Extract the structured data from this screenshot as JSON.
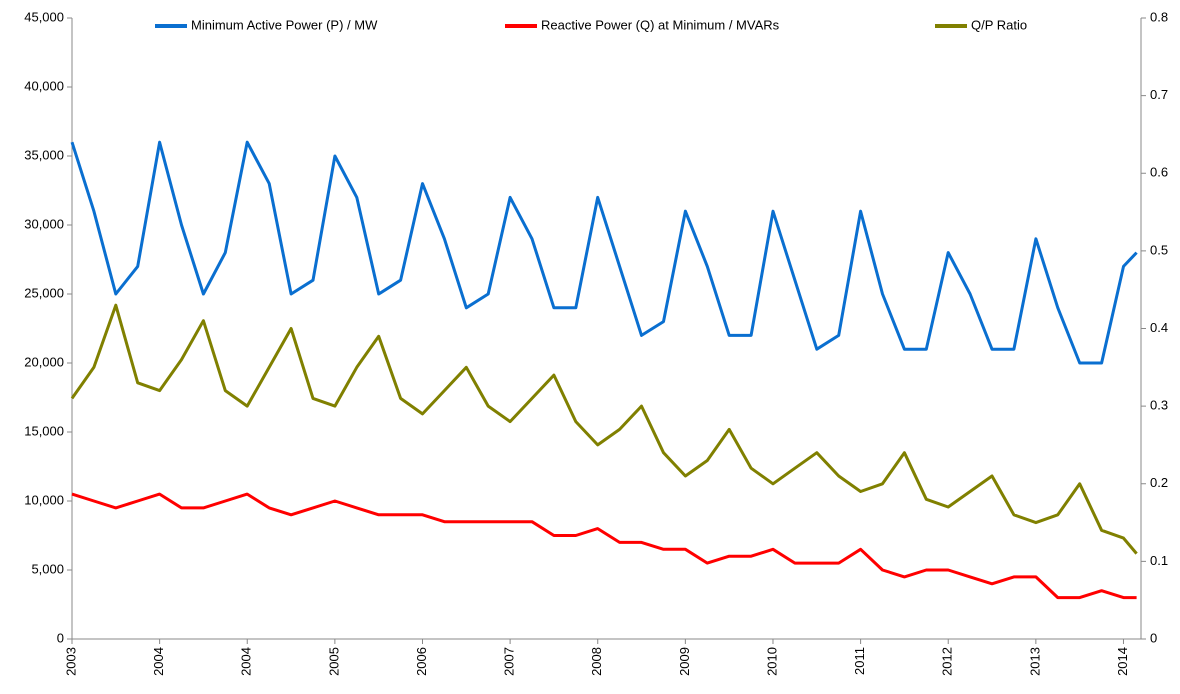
{
  "chart_data": {
    "type": "line",
    "xticks": [
      {
        "value": 0,
        "label": "2003"
      },
      {
        "value": 1,
        "label": "2004"
      },
      {
        "value": 2,
        "label": "2004"
      },
      {
        "value": 3,
        "label": "2005"
      },
      {
        "value": 4,
        "label": "2006"
      },
      {
        "value": 5,
        "label": "2007"
      },
      {
        "value": 6,
        "label": "2008"
      },
      {
        "value": 7,
        "label": "2009"
      },
      {
        "value": 8,
        "label": "2010"
      },
      {
        "value": 9,
        "label": "2011"
      },
      {
        "value": 10,
        "label": "2012"
      },
      {
        "value": 11,
        "label": "2013"
      },
      {
        "value": 12,
        "label": "2014"
      }
    ],
    "xlim": [
      0,
      12.2
    ],
    "ylim": [
      0,
      45000
    ],
    "yticks": [
      0,
      {
        "value": 5000,
        "label": "5,000"
      },
      {
        "value": 10000,
        "label": "10,000"
      },
      {
        "value": 15000,
        "label": "15,000"
      },
      {
        "value": 20000,
        "label": "20,000"
      },
      {
        "value": 25000,
        "label": "25,000"
      },
      {
        "value": 30000,
        "label": "30,000"
      },
      {
        "value": 35000,
        "label": "35,000"
      },
      {
        "value": 40000,
        "label": "40,000"
      },
      {
        "value": 45000,
        "label": "45,000"
      }
    ],
    "y2lim": [
      0,
      0.8
    ],
    "y2ticks": [
      0,
      0.1,
      0.2,
      0.3,
      0.4,
      0.5,
      0.6,
      0.7,
      0.8
    ],
    "legend": "top",
    "x": [
      0,
      0.25,
      0.5,
      0.75,
      1,
      1.25,
      1.5,
      1.75,
      2,
      2.25,
      2.5,
      2.75,
      3,
      3.25,
      3.5,
      3.75,
      4,
      4.25,
      4.5,
      4.75,
      5,
      5.25,
      5.5,
      5.75,
      6,
      6.25,
      6.5,
      6.75,
      7,
      7.25,
      7.5,
      7.75,
      8,
      8.25,
      8.5,
      8.75,
      9,
      9.25,
      9.5,
      9.75,
      10,
      10.25,
      10.5,
      10.75,
      11,
      11.25,
      11.5,
      11.75,
      12,
      12.15
    ],
    "series": [
      {
        "name": "Minimum Active Power (P) / MW",
        "color": "#0a6fd0",
        "values": [
          36000,
          31000,
          25000,
          27000,
          36000,
          30000,
          25000,
          28000,
          36000,
          33000,
          25000,
          26000,
          35000,
          32000,
          25000,
          26000,
          33000,
          29000,
          24000,
          25000,
          32000,
          29000,
          24000,
          24000,
          32000,
          27000,
          22000,
          23000,
          31000,
          27000,
          22000,
          22000,
          31000,
          26000,
          21000,
          22000,
          31000,
          25000,
          21000,
          21000,
          28000,
          25000,
          21000,
          21000,
          29000,
          24000,
          20000,
          20000,
          27000,
          28000
        ]
      },
      {
        "name": "Reactive Power (Q) at Minimum / MVARs",
        "color": "#ff0000",
        "values": [
          10500,
          10000,
          9500,
          10000,
          10500,
          9500,
          9500,
          10000,
          10500,
          9500,
          9000,
          9500,
          10000,
          9500,
          9000,
          9000,
          9000,
          8500,
          8500,
          8500,
          8500,
          8500,
          7500,
          7500,
          8000,
          7000,
          7000,
          6500,
          6500,
          5500,
          6000,
          6000,
          6500,
          5500,
          5500,
          5500,
          6500,
          5000,
          4500,
          5000,
          5000,
          4500,
          4000,
          4500,
          4500,
          3000,
          3000,
          3500,
          3000,
          3000
        ]
      },
      {
        "name": "Q/P Ratio",
        "color": "#808000",
        "axis": "y2",
        "values": [
          0.31,
          0.35,
          0.43,
          0.33,
          0.32,
          0.36,
          0.41,
          0.32,
          0.3,
          0.35,
          0.4,
          0.31,
          0.3,
          0.35,
          0.39,
          0.31,
          0.29,
          0.32,
          0.35,
          0.3,
          0.28,
          0.31,
          0.34,
          0.28,
          0.25,
          0.27,
          0.3,
          0.24,
          0.21,
          0.23,
          0.27,
          0.22,
          0.2,
          0.22,
          0.24,
          0.21,
          0.19,
          0.2,
          0.24,
          0.18,
          0.17,
          0.19,
          0.21,
          0.16,
          0.15,
          0.16,
          0.2,
          0.14,
          0.13,
          0.11
        ]
      }
    ]
  }
}
